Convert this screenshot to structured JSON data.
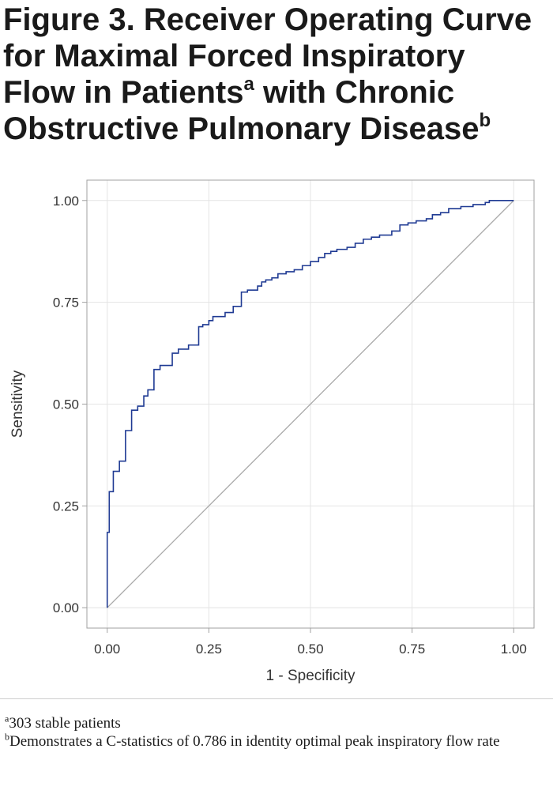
{
  "title": {
    "line1": "Figure 3. Receiver Operating Curve",
    "line2": "for Maximal Forced Inspiratory",
    "line3a": "Flow in Patients",
    "line3_sup": "a",
    "line3b": " with Chronic",
    "line4": "Obstructive Pulmonary Disease",
    "line4_sup": "b"
  },
  "chart_data": {
    "type": "line",
    "xlabel": "1 - Specificity",
    "ylabel": "Sensitivity",
    "xlim": [
      -0.05,
      1.05
    ],
    "ylim": [
      -0.05,
      1.05
    ],
    "xticks": [
      "0.00",
      "0.25",
      "0.50",
      "0.75",
      "1.00"
    ],
    "yticks": [
      "0.00",
      "0.25",
      "0.50",
      "0.75",
      "1.00"
    ],
    "grid": true,
    "series": [
      {
        "color": "#1f3a93",
        "step": true,
        "x": [
          0.0,
          0.005,
          0.015,
          0.03,
          0.045,
          0.06,
          0.075,
          0.09,
          0.1,
          0.115,
          0.13,
          0.16,
          0.175,
          0.2,
          0.225,
          0.235,
          0.25,
          0.26,
          0.29,
          0.31,
          0.33,
          0.345,
          0.37,
          0.38,
          0.39,
          0.405,
          0.42,
          0.44,
          0.46,
          0.48,
          0.5,
          0.52,
          0.535,
          0.55,
          0.565,
          0.59,
          0.61,
          0.63,
          0.65,
          0.67,
          0.7,
          0.72,
          0.74,
          0.76,
          0.785,
          0.8,
          0.82,
          0.84,
          0.87,
          0.9,
          0.93,
          0.94,
          0.96,
          1.0
        ],
        "y": [
          0.0,
          0.185,
          0.285,
          0.335,
          0.36,
          0.435,
          0.485,
          0.495,
          0.52,
          0.535,
          0.585,
          0.595,
          0.625,
          0.635,
          0.645,
          0.69,
          0.695,
          0.705,
          0.715,
          0.725,
          0.74,
          0.775,
          0.78,
          0.79,
          0.8,
          0.805,
          0.81,
          0.82,
          0.825,
          0.83,
          0.84,
          0.85,
          0.86,
          0.87,
          0.875,
          0.88,
          0.885,
          0.895,
          0.905,
          0.91,
          0.915,
          0.925,
          0.94,
          0.945,
          0.95,
          0.955,
          0.965,
          0.97,
          0.98,
          0.985,
          0.99,
          0.995,
          1.0,
          1.0
        ]
      },
      {
        "color": "#a9a9a9",
        "step": false,
        "x": [
          0.0,
          1.0
        ],
        "y": [
          0.0,
          1.0
        ]
      }
    ]
  },
  "footnotes": {
    "fn1_sup": "a",
    "fn1_text": "303 stable patients",
    "fn2_sup": "b",
    "fn2_text": "Demonstrates a C-statistics of 0.786 in identity optimal peak inspiratory flow rate"
  }
}
